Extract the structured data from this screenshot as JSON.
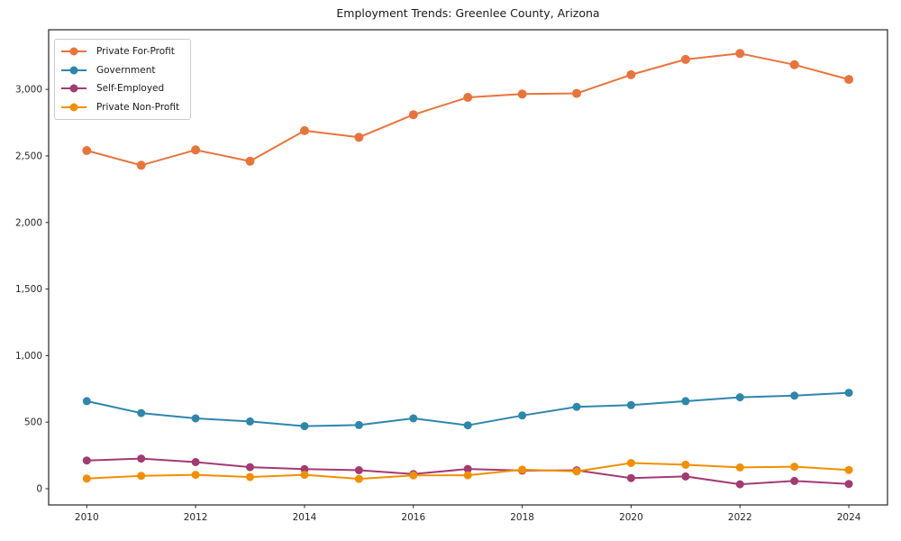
{
  "chart_data": {
    "type": "line",
    "title": "Employment Trends: Greenlee County, Arizona",
    "x": [
      2010,
      2011,
      2012,
      2013,
      2014,
      2015,
      2016,
      2017,
      2018,
      2019,
      2020,
      2021,
      2022,
      2023,
      2024
    ],
    "x_tick_labels": [
      "2010",
      "2012",
      "2014",
      "2016",
      "2018",
      "2020",
      "2022",
      "2024"
    ],
    "y_tick_values": [
      0,
      500,
      1000,
      1500,
      2000,
      2500,
      3000
    ],
    "y_tick_labels": [
      "0",
      "500",
      "1,000",
      "1,500",
      "2,000",
      "2,500",
      "3,000"
    ],
    "xlim": [
      2009.3,
      2024.71
    ],
    "ylim": [
      -122,
      3448
    ],
    "grid": false,
    "legend_position": "upper left",
    "series": [
      {
        "name": "Private For-Profit",
        "color": "#e8743b",
        "values": [
          2540,
          2430,
          2545,
          2460,
          2690,
          2640,
          2810,
          2940,
          2965,
          2970,
          3110,
          3225,
          3270,
          3185,
          3075
        ]
      },
      {
        "name": "Government",
        "color": "#2e86ab",
        "values": [
          658,
          568,
          528,
          505,
          470,
          478,
          528,
          476,
          550,
          615,
          628,
          658,
          687,
          699,
          721
        ]
      },
      {
        "name": "Self-Employed",
        "color": "#a23b72",
        "values": [
          212,
          226,
          200,
          162,
          147,
          139,
          110,
          148,
          136,
          138,
          80,
          92,
          33,
          58,
          36
        ]
      },
      {
        "name": "Private Non-Profit",
        "color": "#f18f01",
        "values": [
          76,
          97,
          104,
          88,
          104,
          74,
          100,
          101,
          143,
          130,
          193,
          180,
          160,
          165,
          141
        ]
      }
    ]
  }
}
